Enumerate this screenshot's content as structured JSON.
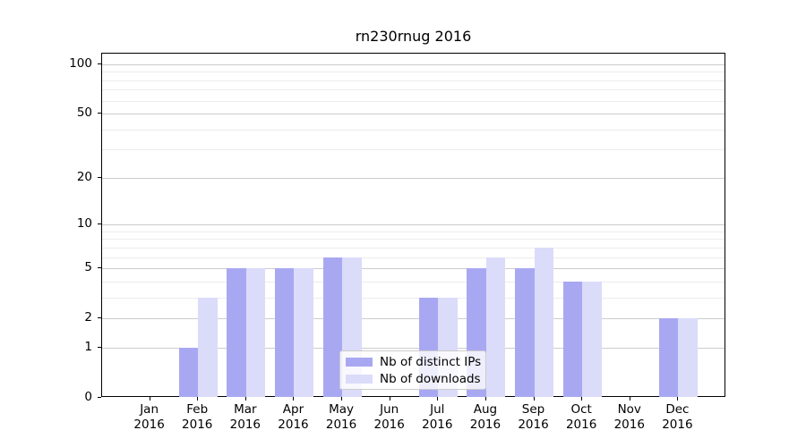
{
  "chart_data": {
    "type": "bar",
    "title": "rn230rnug 2016",
    "xlabel": "",
    "ylabel": "",
    "categories": [
      "Jan\n2016",
      "Feb\n2016",
      "Mar\n2016",
      "Apr\n2016",
      "May\n2016",
      "Jun\n2016",
      "Jul\n2016",
      "Aug\n2016",
      "Sep\n2016",
      "Oct\n2016",
      "Nov\n2016",
      "Dec\n2016"
    ],
    "series": [
      {
        "name": "Nb of distinct IPs",
        "color": "#a8a8f2",
        "values": [
          0,
          1,
          5,
          5,
          6,
          0,
          3,
          5,
          5,
          4,
          0,
          2
        ]
      },
      {
        "name": "Nb of downloads",
        "color": "#dbdbfa",
        "values": [
          0,
          3,
          5,
          5,
          6,
          0,
          3,
          6,
          7,
          4,
          0,
          2
        ]
      }
    ],
    "yscale": "log1p",
    "yticks": [
      0,
      1,
      2,
      5,
      10,
      20,
      50,
      100
    ],
    "minor_gridlines": [
      3,
      4,
      6,
      7,
      8,
      9,
      30,
      40,
      60,
      70,
      80,
      90
    ],
    "ylim": [
      0,
      116
    ],
    "grid": true,
    "legend_position": "inside-bottom-center",
    "colors": {
      "grid_major": "#cccccc",
      "grid_minor": "#ececec",
      "axis_frame": "#000000",
      "text": "#000000"
    }
  }
}
